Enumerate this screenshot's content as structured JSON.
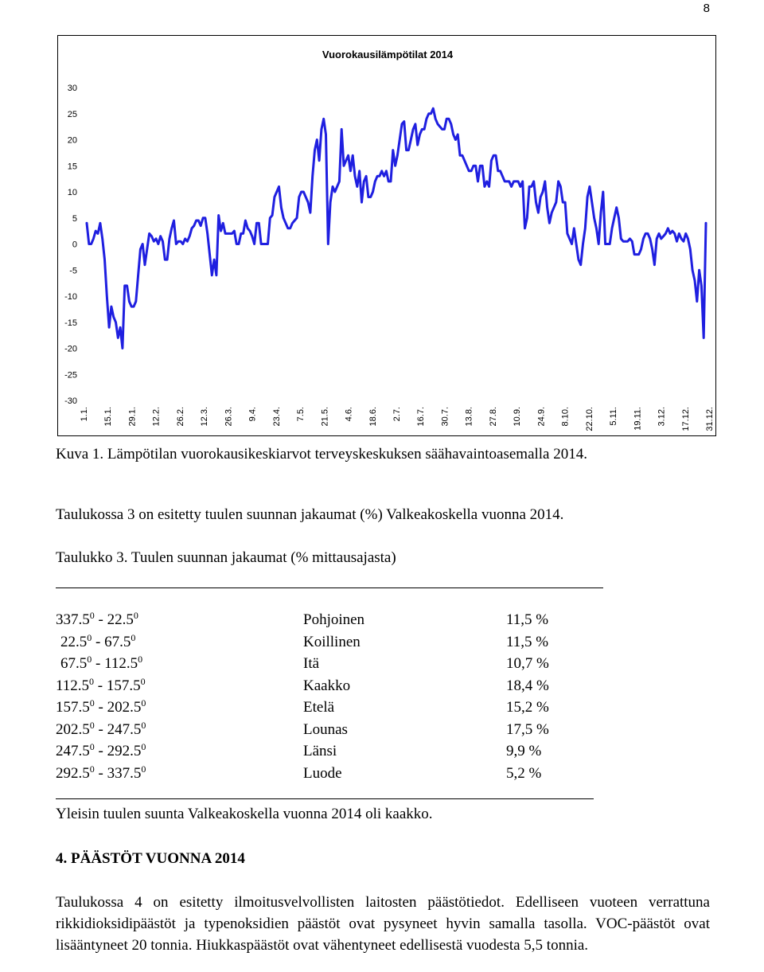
{
  "page_number": "8",
  "chart_data": {
    "type": "line",
    "title": "Vuorokausilämpötilat 2014",
    "xlabel": "",
    "ylabel": "",
    "ylim": [
      -30,
      30
    ],
    "yticks": [
      30,
      25,
      20,
      15,
      10,
      5,
      0,
      -5,
      -10,
      -15,
      -20,
      -25,
      -30
    ],
    "grid": false,
    "legend": "none",
    "line_color": "#1f1fe0",
    "categories": [
      "1.1.",
      "15.1.",
      "29.1.",
      "12.2.",
      "26.2.",
      "12.3.",
      "26.3.",
      "9.4.",
      "23.4.",
      "7.5.",
      "21.5.",
      "4.6.",
      "18.6.",
      "2.7.",
      "16.7.",
      "30.7.",
      "13.8.",
      "27.8.",
      "10.9.",
      "24.9.",
      "8.10.",
      "22.10.",
      "5.11.",
      "19.11.",
      "3.12.",
      "17.12.",
      "31.12."
    ],
    "series": [
      {
        "points": [
          [
            1,
            4
          ],
          [
            2,
            0
          ],
          [
            3,
            0
          ],
          [
            4,
            1
          ],
          [
            5,
            2.5
          ],
          [
            6,
            2
          ],
          [
            7,
            4
          ],
          [
            8,
            1
          ],
          [
            9,
            -3
          ],
          [
            10,
            -10
          ],
          [
            11,
            -16
          ],
          [
            12,
            -12
          ],
          [
            13,
            -14
          ],
          [
            14,
            -15
          ],
          [
            15,
            -18
          ],
          [
            16,
            -16
          ],
          [
            17,
            -20
          ],
          [
            18,
            -8
          ],
          [
            19,
            -8
          ],
          [
            20,
            -11
          ],
          [
            21,
            -12
          ],
          [
            22,
            -12
          ],
          [
            23,
            -11
          ],
          [
            24,
            -6
          ],
          [
            25,
            -1
          ],
          [
            26,
            0
          ],
          [
            27,
            -4
          ],
          [
            28,
            -1
          ],
          [
            29,
            2
          ],
          [
            30,
            1.5
          ],
          [
            31,
            0.5
          ],
          [
            32,
            1
          ],
          [
            33,
            0
          ],
          [
            34,
            1.5
          ],
          [
            35,
            0.5
          ],
          [
            36,
            -3
          ],
          [
            37,
            -3
          ],
          [
            38,
            1
          ],
          [
            39,
            3
          ],
          [
            40,
            4.5
          ],
          [
            41,
            0
          ],
          [
            42,
            0.5
          ],
          [
            43,
            0.5
          ],
          [
            44,
            0
          ],
          [
            45,
            1
          ],
          [
            46,
            0.5
          ],
          [
            47,
            1.5
          ],
          [
            48,
            3
          ],
          [
            49,
            3.5
          ],
          [
            50,
            4.5
          ],
          [
            51,
            4.5
          ],
          [
            52,
            3.5
          ],
          [
            53,
            5
          ],
          [
            54,
            5
          ],
          [
            55,
            2
          ],
          [
            56,
            -2
          ],
          [
            57,
            -6
          ],
          [
            58,
            -3
          ],
          [
            59,
            -6
          ],
          [
            60,
            5.5
          ],
          [
            61,
            2.5
          ],
          [
            62,
            4
          ],
          [
            63,
            2
          ],
          [
            64,
            2
          ],
          [
            65,
            2
          ],
          [
            66,
            2
          ],
          [
            67,
            2.5
          ],
          [
            68,
            0
          ],
          [
            69,
            0
          ],
          [
            70,
            2
          ],
          [
            71,
            2
          ],
          [
            72,
            4.5
          ],
          [
            73,
            3
          ],
          [
            74,
            2.5
          ],
          [
            75,
            1.5
          ],
          [
            76,
            0
          ],
          [
            77,
            4
          ],
          [
            78,
            4
          ],
          [
            79,
            0
          ],
          [
            80,
            0
          ],
          [
            81,
            0
          ],
          [
            82,
            0
          ],
          [
            83,
            5
          ],
          [
            84,
            5.5
          ],
          [
            85,
            9
          ],
          [
            86,
            10
          ],
          [
            87,
            11
          ],
          [
            88,
            7
          ],
          [
            89,
            5
          ],
          [
            90,
            4
          ],
          [
            91,
            3
          ],
          [
            92,
            3
          ],
          [
            93,
            4
          ],
          [
            94,
            4.5
          ],
          [
            95,
            5
          ],
          [
            96,
            9
          ],
          [
            97,
            10
          ],
          [
            98,
            10
          ],
          [
            99,
            9
          ],
          [
            100,
            8
          ],
          [
            101,
            6
          ],
          [
            102,
            13
          ],
          [
            103,
            18
          ],
          [
            104,
            20
          ],
          [
            105,
            16
          ],
          [
            106,
            22
          ],
          [
            107,
            24
          ],
          [
            108,
            21
          ],
          [
            109,
            0
          ],
          [
            110,
            8
          ],
          [
            111,
            11
          ],
          [
            112,
            10
          ],
          [
            113,
            11
          ],
          [
            114,
            12
          ],
          [
            115,
            22
          ],
          [
            116,
            15
          ],
          [
            117,
            16
          ],
          [
            118,
            17
          ],
          [
            119,
            14
          ],
          [
            120,
            17
          ],
          [
            121,
            13
          ],
          [
            122,
            11
          ],
          [
            123,
            14
          ],
          [
            124,
            8
          ],
          [
            125,
            12
          ],
          [
            126,
            13
          ],
          [
            127,
            9
          ],
          [
            128,
            9
          ],
          [
            129,
            10
          ],
          [
            130,
            12
          ],
          [
            131,
            13
          ],
          [
            132,
            13
          ],
          [
            133,
            14
          ],
          [
            134,
            13
          ],
          [
            135,
            14
          ],
          [
            136,
            12
          ],
          [
            137,
            12
          ],
          [
            138,
            18
          ],
          [
            139,
            15
          ],
          [
            140,
            17
          ],
          [
            141,
            20
          ],
          [
            142,
            23
          ],
          [
            143,
            23.5
          ],
          [
            144,
            18
          ],
          [
            145,
            18
          ],
          [
            146,
            20
          ],
          [
            147,
            22
          ],
          [
            148,
            23
          ],
          [
            149,
            19
          ],
          [
            150,
            21
          ],
          [
            151,
            22
          ],
          [
            152,
            22
          ],
          [
            153,
            24
          ],
          [
            154,
            25
          ],
          [
            155,
            25
          ],
          [
            156,
            26
          ],
          [
            157,
            24
          ],
          [
            158,
            23
          ],
          [
            159,
            22.5
          ],
          [
            160,
            22
          ],
          [
            161,
            22
          ],
          [
            162,
            24
          ],
          [
            163,
            24
          ],
          [
            164,
            23
          ],
          [
            165,
            21
          ],
          [
            166,
            20
          ],
          [
            167,
            21
          ],
          [
            168,
            17
          ],
          [
            169,
            17
          ],
          [
            170,
            16
          ],
          [
            171,
            15
          ],
          [
            172,
            14
          ],
          [
            173,
            14
          ],
          [
            174,
            15
          ],
          [
            175,
            15
          ],
          [
            176,
            12
          ],
          [
            177,
            15
          ],
          [
            178,
            15
          ],
          [
            179,
            11
          ],
          [
            180,
            12
          ],
          [
            181,
            11
          ],
          [
            182,
            16
          ],
          [
            183,
            17
          ],
          [
            184,
            17
          ],
          [
            185,
            14
          ],
          [
            186,
            14
          ],
          [
            187,
            13
          ],
          [
            188,
            12
          ],
          [
            189,
            12
          ],
          [
            190,
            12
          ],
          [
            191,
            11
          ],
          [
            192,
            12
          ],
          [
            193,
            12
          ],
          [
            194,
            12
          ],
          [
            195,
            11
          ],
          [
            196,
            12
          ],
          [
            197,
            3
          ],
          [
            198,
            5
          ],
          [
            199,
            11
          ],
          [
            200,
            11
          ],
          [
            201,
            12
          ],
          [
            202,
            8
          ],
          [
            203,
            6
          ],
          [
            204,
            9
          ],
          [
            205,
            10
          ],
          [
            206,
            12
          ],
          [
            207,
            7
          ],
          [
            208,
            4
          ],
          [
            209,
            6
          ],
          [
            210,
            7
          ],
          [
            211,
            8
          ],
          [
            212,
            12
          ],
          [
            213,
            11
          ],
          [
            214,
            8
          ],
          [
            215,
            8
          ],
          [
            216,
            2
          ],
          [
            217,
            1
          ],
          [
            218,
            0
          ],
          [
            219,
            3
          ],
          [
            220,
            0
          ],
          [
            221,
            -3
          ],
          [
            222,
            -4
          ],
          [
            223,
            0
          ],
          [
            224,
            3
          ],
          [
            225,
            9
          ],
          [
            226,
            11
          ],
          [
            227,
            8
          ],
          [
            228,
            5
          ],
          [
            229,
            3
          ],
          [
            230,
            0
          ],
          [
            231,
            6
          ],
          [
            232,
            10
          ],
          [
            233,
            0
          ],
          [
            234,
            0
          ],
          [
            235,
            0
          ],
          [
            236,
            3
          ],
          [
            237,
            5
          ],
          [
            238,
            7
          ],
          [
            239,
            5
          ],
          [
            240,
            1
          ],
          [
            241,
            0.5
          ],
          [
            242,
            0.5
          ],
          [
            243,
            0.5
          ],
          [
            244,
            1
          ],
          [
            245,
            0.5
          ],
          [
            246,
            -2
          ],
          [
            247,
            -2
          ],
          [
            248,
            -2
          ],
          [
            249,
            -1
          ],
          [
            250,
            1
          ],
          [
            251,
            2
          ],
          [
            252,
            2
          ],
          [
            253,
            1
          ],
          [
            254,
            -1
          ],
          [
            255,
            -4
          ],
          [
            256,
            1
          ],
          [
            257,
            2
          ],
          [
            258,
            1
          ],
          [
            259,
            1.5
          ],
          [
            260,
            2
          ],
          [
            261,
            3
          ],
          [
            262,
            2
          ],
          [
            263,
            2.5
          ],
          [
            264,
            2
          ],
          [
            265,
            0.5
          ],
          [
            266,
            2
          ],
          [
            267,
            1
          ],
          [
            268,
            0.5
          ],
          [
            269,
            2
          ],
          [
            270,
            1
          ],
          [
            271,
            -1
          ],
          [
            272,
            -5
          ],
          [
            273,
            -7
          ],
          [
            274,
            -11
          ],
          [
            275,
            -5
          ],
          [
            276,
            -8
          ],
          [
            277,
            -18
          ],
          [
            278,
            4
          ]
        ]
      }
    ]
  },
  "caption": "Kuva 1. Lämpötilan vuorokausikeskiarvot terveyskeskuksen säähavaintoasemalla 2014.",
  "intro": "Taulukossa 3 on esitetty tuulen suunnan jakaumat (%) Valkeakoskella vuonna 2014.",
  "table_title": "Taulukko 3. Tuulen suunnan jakaumat (% mittausajasta)",
  "degree_mark": "0",
  "wind_table": [
    {
      "from": "337.5",
      "to": "22.5",
      "direction": "Pohjoinen",
      "share": "11,5 %"
    },
    {
      "from": "22.5",
      "to": "67.5",
      "direction": "Koillinen",
      "share": "11,5 %"
    },
    {
      "from": "67.5",
      "to": "112.5",
      "direction": "Itä",
      "share": "10,7 %"
    },
    {
      "from": "112.5",
      "to": "157.5",
      "direction": "Kaakko",
      "share": "18,4 %"
    },
    {
      "from": "157.5",
      "to": "202.5",
      "direction": "Etelä",
      "share": "15,2 %"
    },
    {
      "from": "202.5",
      "to": "247.5",
      "direction": "Lounas",
      "share": "17,5 %"
    },
    {
      "from": "247.5",
      "to": "292.5",
      "direction": "Länsi",
      "share": "9,9 %"
    },
    {
      "from": "292.5",
      "to": "337.5",
      "direction": "Luode",
      "share": "5,2 %"
    }
  ],
  "table_note": "Yleisin tuulen suunta Valkeakoskella vuonna 2014 oli kaakko.",
  "section_heading": "4. PÄÄSTÖT VUONNA 2014",
  "body_text": "Taulukossa 4 on esitetty ilmoitusvelvollisten laitosten päästötiedot. Edelliseen vuoteen verrattuna rikkidioksidipäästöt ja typenoksidien päästöt ovat pysyneet hyvin samalla tasolla. VOC-päästöt ovat lisääntyneet 20 tonnia. Hiukkaspäästöt ovat vähentyneet edellisestä vuodesta 5,5 tonnia."
}
